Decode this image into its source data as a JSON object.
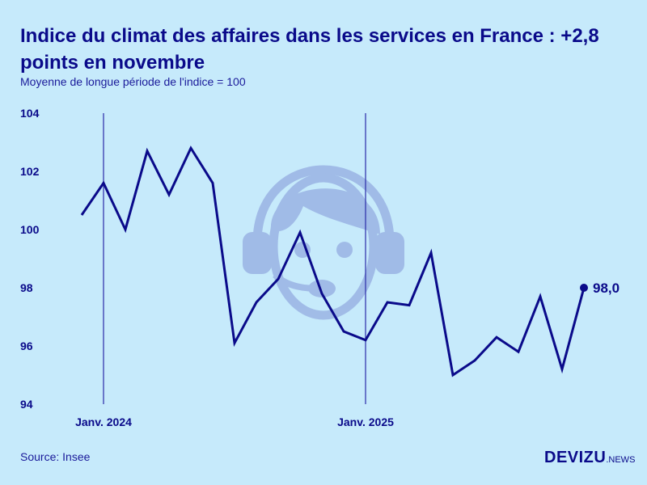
{
  "title": "Indice du climat des affaires dans les services en France : +2,8 points en novembre",
  "subtitle": "Moyenne de longue période de l'indice = 100",
  "source": "Source: Insee",
  "logo": {
    "main": "DEVIZU",
    "suffix": ".NEWS"
  },
  "colors": {
    "background": "#c6eafb",
    "line": "#0a0a8a",
    "illustration": "#9fb9e6"
  },
  "illustration_icon": "headset-operator-icon",
  "chart_data": {
    "type": "line",
    "title": "Indice du climat des affaires dans les services en France : +2,8 points en novembre",
    "subtitle": "Moyenne de longue période de l'indice = 100",
    "x": [
      "2023-12",
      "2024-01",
      "2024-02",
      "2024-03",
      "2024-04",
      "2024-05",
      "2024-06",
      "2024-07",
      "2024-08",
      "2024-09",
      "2024-10",
      "2024-11",
      "2024-12",
      "2025-01",
      "2025-02",
      "2025-03",
      "2025-04",
      "2025-05",
      "2025-06",
      "2025-07",
      "2025-08",
      "2025-09",
      "2025-10",
      "2025-11"
    ],
    "values": [
      100.5,
      101.6,
      100.0,
      102.7,
      101.2,
      102.8,
      101.6,
      96.1,
      97.5,
      98.3,
      99.9,
      97.8,
      96.5,
      96.2,
      97.5,
      97.4,
      99.2,
      95.0,
      95.5,
      96.3,
      95.8,
      97.7,
      95.2,
      98.0
    ],
    "ylim": [
      94,
      104
    ],
    "yticks": [
      "94",
      "96",
      "98",
      "100",
      "102",
      "104"
    ],
    "xticks": [
      {
        "label": "Janv. 2024",
        "x": "2024-01"
      },
      {
        "label": "Janv. 2025",
        "x": "2025-01"
      }
    ],
    "last_label": "98,0",
    "grid": false,
    "legend": "none"
  }
}
